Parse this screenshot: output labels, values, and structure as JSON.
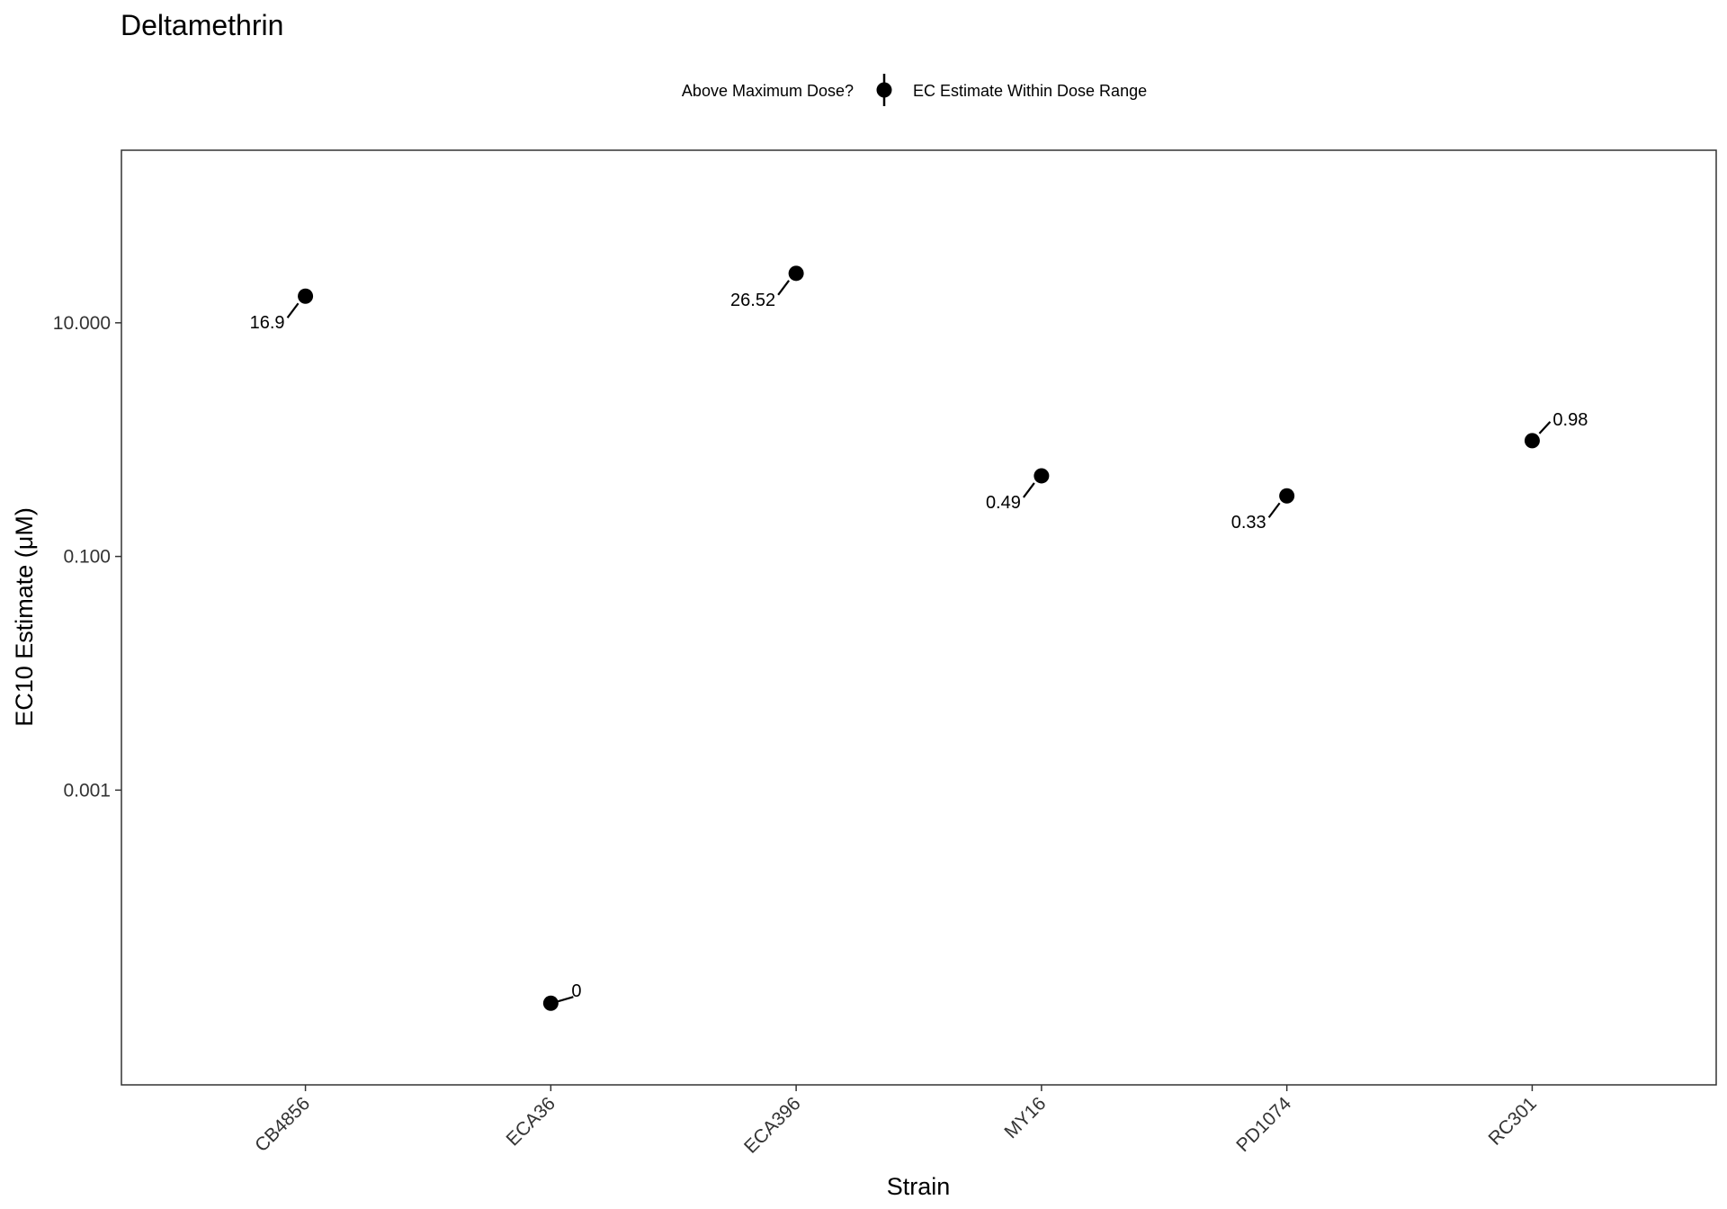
{
  "chart_data": {
    "type": "scatter",
    "title": "Deltamethrin",
    "xlabel": "Strain",
    "ylabel": "EC10 Estimate (μM)",
    "y_scale": "log10",
    "ylim": [
      3e-06,
      300
    ],
    "yticks": [
      {
        "value": 0.001,
        "label": "0.001"
      },
      {
        "value": 0.1,
        "label": "0.100"
      },
      {
        "value": 10,
        "label": "10.000"
      }
    ],
    "categories": [
      "CB4856",
      "ECA36",
      "ECA396",
      "MY16",
      "PD1074",
      "RC301"
    ],
    "legend": {
      "title": "Above Maximum Dose?",
      "entries": [
        "EC Estimate Within Dose Range"
      ],
      "position": "top"
    },
    "grid": false,
    "points": [
      {
        "strain": "CB4856",
        "value": 16.9,
        "label": "16.9",
        "label_side": "lower-left"
      },
      {
        "strain": "ECA36",
        "value": 1.5e-05,
        "label": "0",
        "label_side": "upper-right"
      },
      {
        "strain": "ECA396",
        "value": 26.52,
        "label": "26.52",
        "label_side": "lower-left"
      },
      {
        "strain": "MY16",
        "value": 0.49,
        "label": "0.49",
        "label_side": "lower-left"
      },
      {
        "strain": "PD1074",
        "value": 0.33,
        "label": "0.33",
        "label_side": "lower-left"
      },
      {
        "strain": "RC301",
        "value": 0.98,
        "label": "0.98",
        "label_side": "upper-right"
      }
    ],
    "colors": {
      "point": "#000000",
      "axis": "#333333",
      "text": "#000000"
    }
  }
}
